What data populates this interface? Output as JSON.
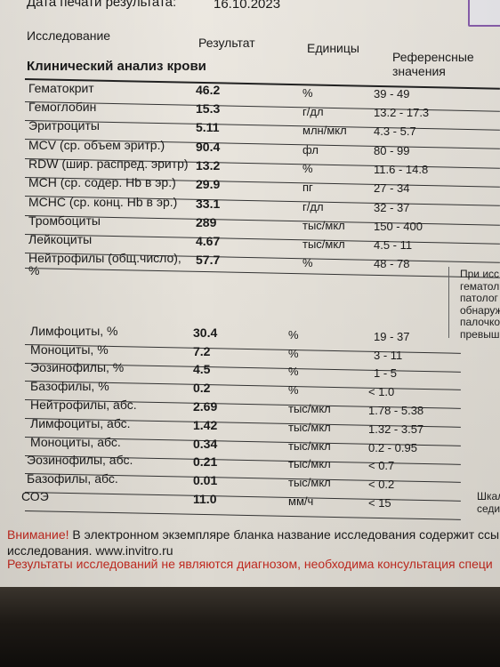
{
  "header": {
    "print_date_label": "Дата печати результата:",
    "print_date": "16.10.2023",
    "col_research": "Исследование",
    "col_result": "Результат",
    "col_units": "Единицы",
    "col_ref_line1": "Референсные",
    "col_ref_line2": "значения"
  },
  "section_title": "Клинический анализ крови",
  "rows": [
    {
      "name": "Гематокрит",
      "value": "46.2",
      "unit": "%",
      "ref": "39 - 49"
    },
    {
      "name": "Гемоглобин",
      "value": "15.3",
      "unit": "г/дл",
      "ref": "13.2 - 17.3"
    },
    {
      "name": "Эритроциты",
      "value": "5.11",
      "unit": "млн/мкл",
      "ref": "4.3 - 5.7"
    },
    {
      "name": "MCV (ср. объем эритр.)",
      "value": "90.4",
      "unit": "фл",
      "ref": "80 - 99"
    },
    {
      "name": "RDW (шир. распред. эритр)",
      "value": "13.2",
      "unit": "%",
      "ref": "11.6 - 14.8"
    },
    {
      "name": "MCH (ср. содер. Hb в эр.)",
      "value": "29.9",
      "unit": "пг",
      "ref": "27 - 34"
    },
    {
      "name": "MCHC (ср. конц. Hb в эр.)",
      "value": "33.1",
      "unit": "г/дл",
      "ref": "32 - 37"
    },
    {
      "name": "Тромбоциты",
      "value": "289",
      "unit": "тыс/мкл",
      "ref": "150 - 400"
    },
    {
      "name": "Лейкоциты",
      "value": "4.67",
      "unit": "тыс/мкл",
      "ref": "4.5 - 11"
    },
    {
      "name": "Нейтрофилы (общ.число),",
      "name2": "%",
      "value": "57.7",
      "unit": "%",
      "ref": "48 - 78"
    },
    {
      "name": "Лимфоциты, %",
      "value": "30.4",
      "unit": "%",
      "ref": "19 - 37"
    },
    {
      "name": "Моноциты, %",
      "value": "7.2",
      "unit": "%",
      "ref": "3 - 11"
    },
    {
      "name": "Эозинофилы, %",
      "value": "4.5",
      "unit": "%",
      "ref": "1 - 5"
    },
    {
      "name": "Базофилы, %",
      "value": "0.2",
      "unit": "%",
      "ref": "< 1.0"
    },
    {
      "name": "Нейтрофилы, абс.",
      "value": "2.69",
      "unit": "тыс/мкл",
      "ref": "1.78 - 5.38"
    },
    {
      "name": "Лимфоциты, абс.",
      "value": "1.42",
      "unit": "тыс/мкл",
      "ref": "1.32 - 3.57"
    },
    {
      "name": "Моноциты, абс.",
      "value": "0.34",
      "unit": "тыс/мкл",
      "ref": "0.2 - 0.95"
    },
    {
      "name": "Эозинофилы, абс.",
      "value": "0.21",
      "unit": "тыс/мкл",
      "ref": "< 0.7"
    },
    {
      "name": "Базофилы, абс.",
      "value": "0.01",
      "unit": "тыс/мкл",
      "ref": "< 0.2"
    },
    {
      "name": "СОЭ",
      "value": "11.0",
      "unit": "мм/ч",
      "ref": "< 15"
    }
  ],
  "side_note": [
    "При исс",
    "гематол",
    "патолог",
    "обнаруж",
    "палочкоя",
    "превыша"
  ],
  "side_note_soe": [
    "Шкал",
    "седи"
  ],
  "footer": {
    "attention_label": "Внимание!",
    "attention_text": "В электронном экземпляре бланка название исследования содержит ссы",
    "attention_text2": "исследования. www.invitro.ru",
    "diagnosis_part1": "Результаты",
    "diagnosis_part2": "исследований не являются диагнозом, необходима консультация специ"
  }
}
